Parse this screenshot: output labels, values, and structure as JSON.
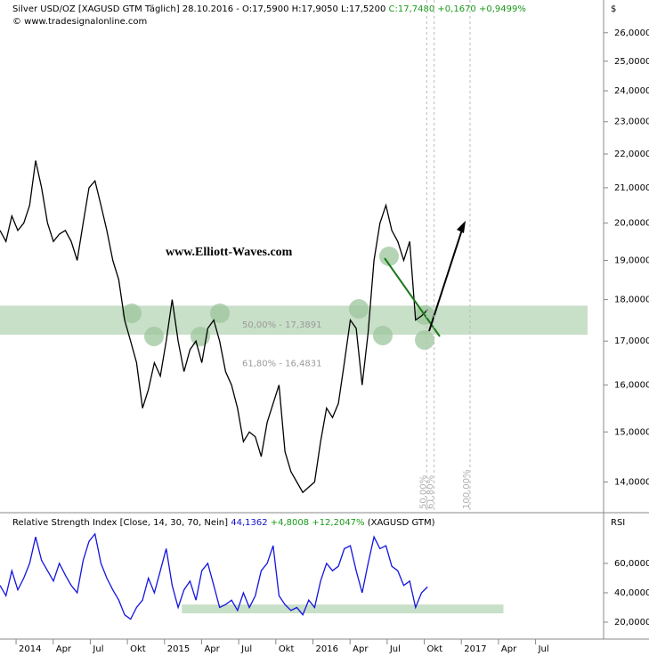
{
  "header": {
    "parts": [
      {
        "text": "Silver USD/OZ [XAGUSD GTM  Täglich] 28.10.2016 - O:17,5900 H:17,9050 L:17,5200 ",
        "color": "#000000"
      },
      {
        "text": "C:17,7480 +0,1670 +0,9499%",
        "color": "#1a9a1a"
      }
    ],
    "copyright": "© www.tradesignalonline.com"
  },
  "watermark": "www.Elliott-Waves.com",
  "chart_data": [
    {
      "type": "line",
      "y_axis_title": "$",
      "ylog": true,
      "x": [
        -1.3,
        -0.82,
        -0.34,
        0.14,
        0.62,
        1.1,
        1.58,
        2.06,
        2.54,
        3.02,
        3.5,
        3.98,
        4.46,
        4.94,
        5.42,
        5.9,
        6.38,
        6.86,
        7.34,
        7.82,
        8.3,
        8.78,
        9.26,
        9.74,
        10.22,
        10.7,
        11.18,
        11.66,
        12.14,
        12.62,
        13.1,
        13.58,
        14.06,
        14.54,
        15.02,
        15.5,
        15.98,
        16.46,
        16.94,
        17.42,
        17.9,
        18.38,
        18.86,
        19.34,
        19.82,
        20.3,
        20.78,
        21.26,
        21.74,
        22.22,
        22.7,
        23.18,
        23.66,
        24.14,
        24.62,
        25.1,
        25.58,
        26.06,
        26.54,
        27.02,
        27.5,
        27.98,
        28.46,
        28.94,
        29.42,
        29.9,
        30.38,
        30.86,
        31.34,
        31.82,
        32.3,
        32.78,
        33.26
      ],
      "series": [
        {
          "name": "Silver USD/OZ",
          "color": "#000000",
          "values": [
            19.8,
            19.5,
            20.2,
            19.8,
            20.0,
            20.5,
            21.8,
            21.0,
            20.0,
            19.5,
            19.7,
            19.8,
            19.5,
            19.0,
            20.0,
            21.0,
            21.2,
            20.5,
            19.8,
            19.0,
            18.5,
            17.5,
            17.0,
            16.5,
            15.5,
            15.9,
            16.5,
            16.2,
            17.0,
            18.0,
            17.0,
            16.3,
            16.8,
            17.0,
            16.5,
            17.3,
            17.5,
            17.0,
            16.3,
            16.0,
            15.5,
            14.8,
            15.0,
            14.9,
            14.5,
            15.2,
            15.6,
            16.0,
            14.6,
            14.2,
            14.0,
            13.8,
            13.9,
            14.0,
            14.8,
            15.5,
            15.3,
            15.6,
            16.5,
            17.5,
            17.3,
            16.0,
            17.2,
            19.0,
            20.0,
            20.5,
            19.8,
            19.5,
            19.0,
            19.5,
            17.5,
            17.6,
            17.75
          ]
        }
      ],
      "xlim": [
        -1.3,
        47.5
      ],
      "ylim": [
        13.42,
        27.2
      ],
      "yticks": [
        {
          "value": 14,
          "label": "14,0000"
        },
        {
          "value": 15,
          "label": "15,0000"
        },
        {
          "value": 16,
          "label": "16,0000"
        },
        {
          "value": 17,
          "label": "17,0000"
        },
        {
          "value": 18,
          "label": "18,0000"
        },
        {
          "value": 19,
          "label": "19,0000"
        },
        {
          "value": 20,
          "label": "20,0000"
        },
        {
          "value": 21,
          "label": "21,0000"
        },
        {
          "value": 22,
          "label": "22,0000"
        },
        {
          "value": 23,
          "label": "23,0000"
        },
        {
          "value": 24,
          "label": "24,0000"
        },
        {
          "value": 25,
          "label": "25,0000"
        },
        {
          "value": 26,
          "label": "26,0000"
        }
      ],
      "zone": {
        "range": [
          17.15,
          17.85
        ],
        "x": [
          -1.3,
          46.2
        ],
        "color": "#c8dfc8"
      },
      "fib_levels": [
        {
          "label": "50,00% - 17,3891",
          "value": 17.3891
        },
        {
          "label": "61,80% - 16,4831",
          "value": 16.4831
        }
      ],
      "time_fibs": [
        {
          "label": "50,00%",
          "value": 33.2
        },
        {
          "label": "61,80%",
          "value": 33.8
        },
        {
          "label": "100,00%",
          "value": 36.7
        }
      ]
    },
    {
      "type": "line",
      "title_parts": [
        {
          "text": "Relative Strength Index [Close, 14, 30, 70, Nein] ",
          "color": "#000000"
        },
        {
          "text": "44,1362 ",
          "color": "#1010d0"
        },
        {
          "text": "+4,8008 +12,2047% ",
          "color": "#1a9a1a"
        },
        {
          "text": "(XAGUSD GTM)",
          "color": "#000000"
        }
      ],
      "y_axis_title": "RSI",
      "series": [
        {
          "name": "RSI",
          "color": "#1414e0",
          "values": [
            45,
            38,
            55,
            42,
            50,
            60,
            78,
            62,
            55,
            48,
            60,
            52,
            45,
            40,
            62,
            75,
            80,
            60,
            50,
            42,
            35,
            25,
            22,
            30,
            35,
            50,
            40,
            55,
            70,
            45,
            30,
            42,
            48,
            35,
            55,
            60,
            45,
            30,
            32,
            35,
            28,
            40,
            30,
            38,
            55,
            60,
            72,
            38,
            32,
            28,
            30,
            25,
            35,
            30,
            48,
            60,
            55,
            58,
            70,
            72,
            55,
            40,
            60,
            78,
            70,
            72,
            58,
            55,
            45,
            48,
            30,
            40,
            44
          ]
        }
      ],
      "ylim": [
        8.5,
        86
      ],
      "yticks": [
        {
          "value": 20,
          "label": "20,0000"
        },
        {
          "value": 40,
          "label": "40,0000"
        },
        {
          "value": 60,
          "label": "60,0000"
        }
      ],
      "zone": {
        "range": [
          26,
          32
        ],
        "x": [
          13.4,
          39.4
        ],
        "color": "#c8dfc8"
      },
      "xticks": [
        {
          "value": 0,
          "label": "2014"
        },
        {
          "value": 3,
          "label": "Apr"
        },
        {
          "value": 6,
          "label": "Jul"
        },
        {
          "value": 9,
          "label": "Okt"
        },
        {
          "value": 12,
          "label": "2015"
        },
        {
          "value": 15,
          "label": "Apr"
        },
        {
          "value": 18,
          "label": "Jul"
        },
        {
          "value": 21,
          "label": "Okt"
        },
        {
          "value": 24,
          "label": "2016"
        },
        {
          "value": 27,
          "label": "Apr"
        },
        {
          "value": 30,
          "label": "Jul"
        },
        {
          "value": 33,
          "label": "Okt"
        },
        {
          "value": 36,
          "label": "2017"
        },
        {
          "value": 39,
          "label": "Apr"
        },
        {
          "value": 42,
          "label": "Jul"
        }
      ]
    }
  ]
}
